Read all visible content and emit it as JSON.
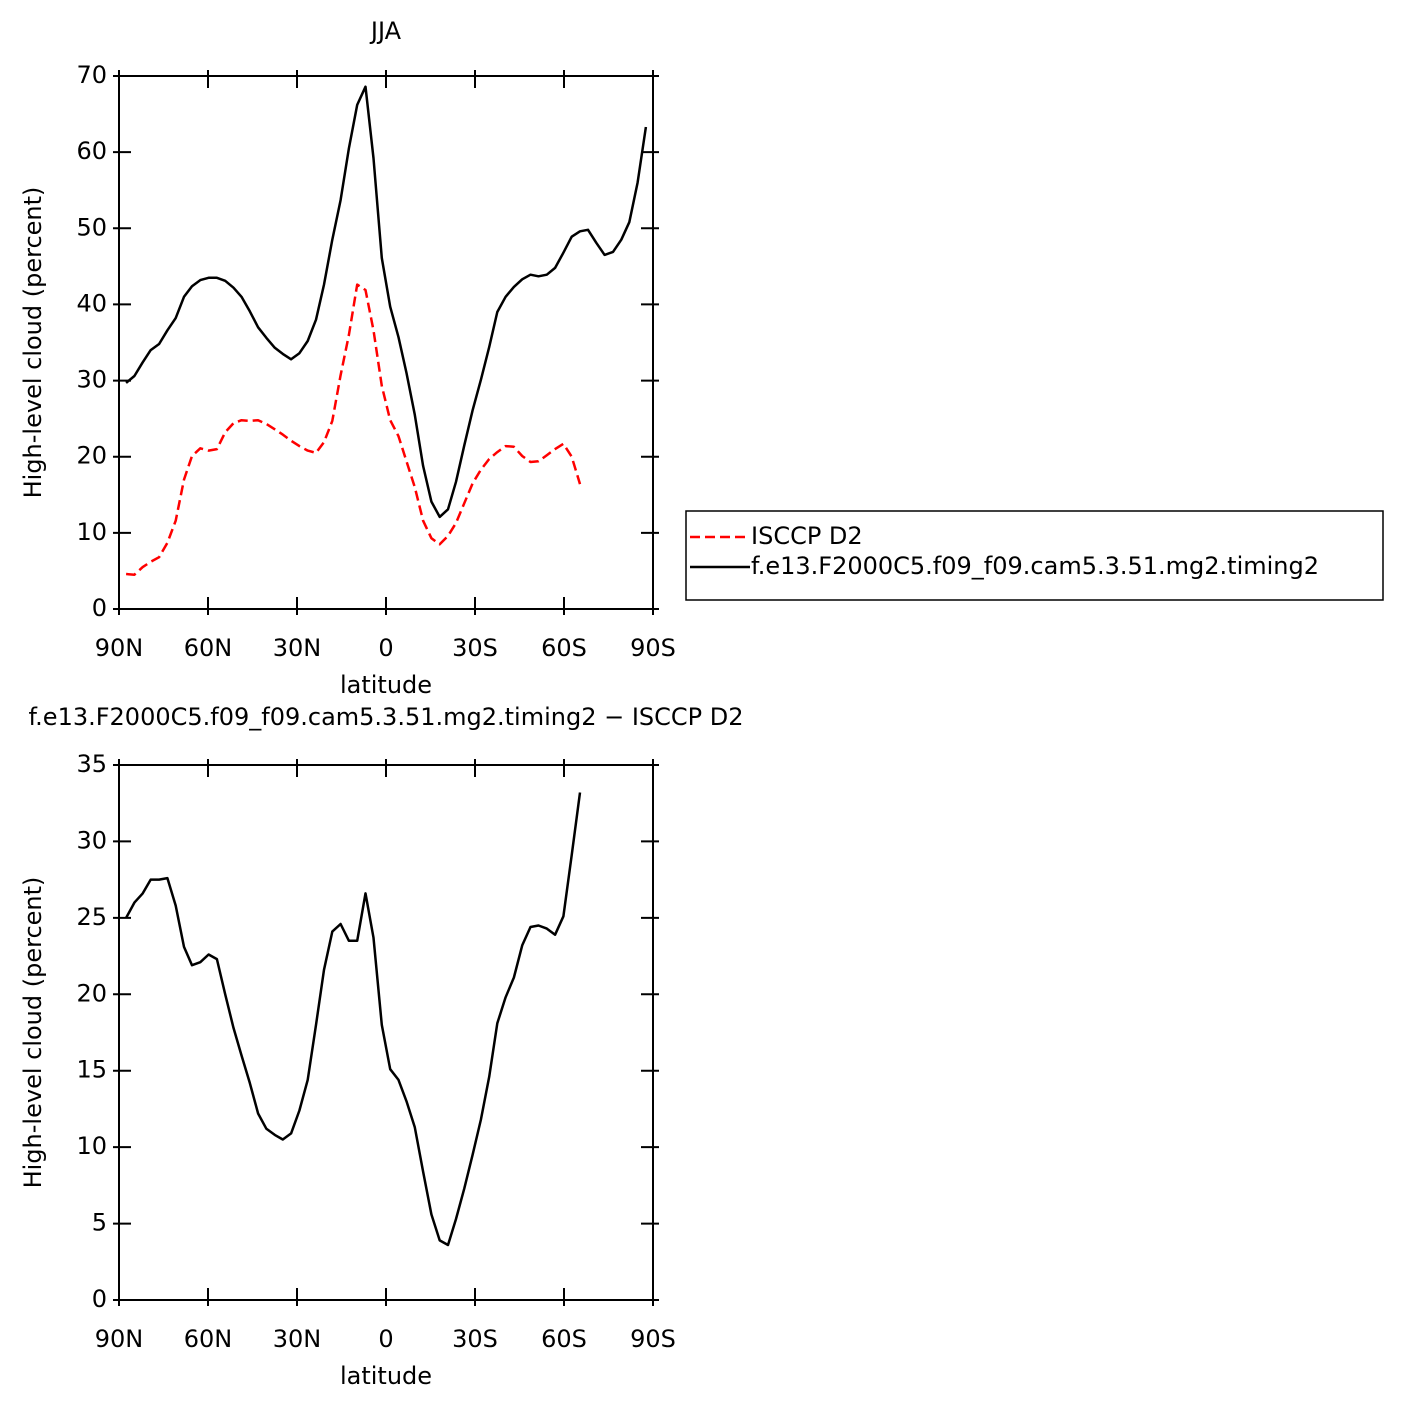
{
  "chart_data": [
    {
      "type": "line",
      "title": "JJA",
      "xlabel": "latitude",
      "ylabel": "High-level cloud (percent)",
      "x": [
        87.6,
        84.8,
        82.0,
        79.3,
        76.5,
        73.7,
        70.9,
        68.1,
        65.4,
        62.6,
        59.8,
        57.0,
        54.2,
        51.4,
        48.7,
        45.9,
        43.1,
        40.3,
        37.5,
        34.8,
        32.0,
        29.2,
        26.4,
        23.6,
        20.9,
        18.1,
        15.3,
        12.5,
        9.7,
        6.9,
        4.2,
        1.4,
        -1.4,
        -4.2,
        -6.9,
        -9.7,
        -12.5,
        -15.3,
        -18.1,
        -20.9,
        -23.6,
        -26.4,
        -29.2,
        -32.0,
        -34.8,
        -37.5,
        -40.3,
        -43.1,
        -45.9,
        -48.7,
        -51.4,
        -54.2,
        -57.0,
        -59.8,
        -62.6,
        -65.4,
        -68.1,
        -70.9,
        -73.7,
        -76.5,
        -79.3,
        -82.0,
        -84.8,
        -87.6
      ],
      "series": [
        {
          "name": "ISCCP D2",
          "color": "#ff0000",
          "dashed": true,
          "values": [
            4.6,
            4.5,
            5.5,
            6.2,
            6.8,
            8.7,
            11.6,
            17,
            20.1,
            21.1,
            20.8,
            21,
            23.2,
            24.4,
            24.8,
            24.7,
            24.8,
            24.3,
            23.6,
            22.9,
            22.1,
            21.4,
            20.8,
            20.5,
            21.9,
            24.7,
            30.7,
            36,
            42.6,
            41.9,
            36.6,
            29.3,
            24.8,
            22.7,
            19.4,
            16,
            11.6,
            9.3,
            8.5,
            9.6,
            11.3,
            13.9,
            16.5,
            18.3,
            19.7,
            20.6,
            21.4,
            21.3,
            20.1,
            19.3,
            19.4,
            20.2,
            21,
            21.7,
            20,
            16.4,
            null,
            null,
            null,
            null,
            null,
            null,
            null,
            null
          ]
        },
        {
          "name": "f.e13.F2000C5.f09_f09.cam5.3.51.mg2.timing2",
          "color": "#000000",
          "dashed": false,
          "values": [
            29.7,
            30.6,
            32.4,
            34,
            34.8,
            36.6,
            38.2,
            41,
            42.4,
            43.2,
            43.5,
            43.5,
            43.1,
            42.2,
            41,
            39.1,
            37,
            35.6,
            34.3,
            33.5,
            32.8,
            33.6,
            35.2,
            38,
            42.6,
            48.5,
            53.7,
            60.5,
            66.2,
            68.6,
            59.2,
            46.1,
            39.7,
            35.7,
            31,
            25.5,
            18.8,
            14.1,
            12.1,
            13.1,
            16.7,
            21.5,
            26.1,
            30.1,
            34.4,
            39,
            41,
            42.3,
            43.3,
            43.9,
            43.7,
            43.9,
            44.8,
            46.8,
            48.9,
            49.6,
            49.8,
            48.1,
            46.5,
            46.9,
            48.5,
            50.8,
            56,
            63.3
          ]
        }
      ],
      "xlim": [
        90,
        -90
      ],
      "xticks": [
        {
          "value": 90,
          "label": "90N"
        },
        {
          "value": 60,
          "label": "60N"
        },
        {
          "value": 30,
          "label": "30N"
        },
        0,
        {
          "value": -30,
          "label": "30S"
        },
        {
          "value": -60,
          "label": "60S"
        },
        {
          "value": -90,
          "label": "90S"
        }
      ],
      "ylim": [
        0,
        70
      ],
      "yticks": [
        0,
        10,
        20,
        30,
        40,
        50,
        60,
        70
      ],
      "legend": "right"
    },
    {
      "type": "line",
      "title": "f.e13.F2000C5.f09_f09.cam5.3.51.mg2.timing2 − ISCCP D2",
      "xlabel": "latitude",
      "ylabel": "High-level cloud (percent)",
      "x": [
        87.6,
        84.8,
        82.0,
        79.3,
        76.5,
        73.7,
        70.9,
        68.1,
        65.4,
        62.6,
        59.8,
        57.0,
        54.2,
        51.4,
        48.7,
        45.9,
        43.1,
        40.3,
        37.5,
        34.8,
        32.0,
        29.2,
        26.4,
        23.6,
        20.9,
        18.1,
        15.3,
        12.5,
        9.7,
        6.9,
        4.2,
        1.4,
        -1.4,
        -4.2,
        -6.9,
        -9.7,
        -12.5,
        -15.3,
        -18.1,
        -20.9,
        -23.6,
        -26.4,
        -29.2,
        -32.0,
        -34.8,
        -37.5,
        -40.3,
        -43.1,
        -45.9,
        -48.7,
        -51.4,
        -54.2,
        -57.0,
        -59.8,
        -62.6,
        -65.4,
        -68.1,
        -70.9,
        -73.7,
        -76.5,
        -79.3,
        -82.0,
        -84.8,
        -87.6
      ],
      "series": [
        {
          "color": "#000000",
          "dashed": false,
          "values": [
            25,
            26,
            26.6,
            27.5,
            27.5,
            27.6,
            25.8,
            23.1,
            21.9,
            22.1,
            22.6,
            22.3,
            20,
            17.8,
            16,
            14.2,
            12.2,
            11.2,
            10.8,
            10.5,
            10.9,
            12.4,
            14.4,
            18,
            21.6,
            24.1,
            24.6,
            23.5,
            23.5,
            26.6,
            23.7,
            18,
            15.1,
            14.4,
            13,
            11.3,
            8.4,
            5.6,
            3.9,
            3.6,
            5.3,
            7.3,
            9.5,
            11.8,
            14.6,
            18.1,
            19.8,
            21.1,
            23.2,
            24.4,
            24.5,
            24.3,
            23.9,
            25.1,
            29.1,
            33.2,
            null,
            null,
            null,
            null,
            null,
            null,
            null,
            null
          ]
        }
      ],
      "xlim": [
        90,
        -90
      ],
      "xticks": [
        {
          "value": 90,
          "label": "90N"
        },
        {
          "value": 60,
          "label": "60N"
        },
        {
          "value": 30,
          "label": "30N"
        },
        0,
        {
          "value": -30,
          "label": "30S"
        },
        {
          "value": -60,
          "label": "60S"
        },
        {
          "value": -90,
          "label": "90S"
        }
      ],
      "ylim": [
        0,
        35
      ],
      "yticks": [
        0,
        5,
        10,
        15,
        20,
        25,
        30,
        35
      ]
    }
  ]
}
